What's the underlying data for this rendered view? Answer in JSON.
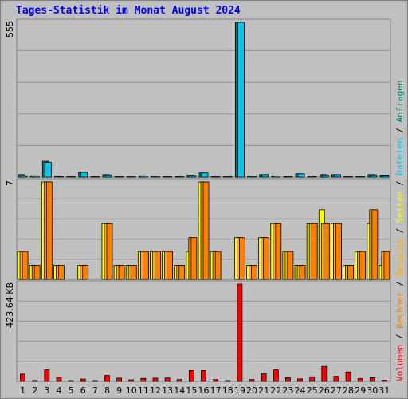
{
  "title": "Tages-Statistik im Monat August 2024",
  "chart_data": {
    "type": "bar",
    "title": "Tages-Statistik im Monat August 2024",
    "days": [
      "1",
      "2",
      "3",
      "4",
      "5",
      "6",
      "7",
      "8",
      "9",
      "10",
      "11",
      "12",
      "13",
      "14",
      "15",
      "16",
      "17",
      "18",
      "19",
      "20",
      "21",
      "22",
      "23",
      "24",
      "25",
      "26",
      "27",
      "28",
      "29",
      "30",
      "31"
    ],
    "weekend_days": [
      "3",
      "4",
      "10",
      "11",
      "17",
      "18",
      "24",
      "25",
      "31"
    ],
    "panels": [
      {
        "name": "requests-files",
        "ymax_label": "555",
        "ymax": 555,
        "series": [
          {
            "name": "Anfragen",
            "color": "#00806b",
            "values": [
              9,
              5,
              57,
              4,
              2,
              17,
              2,
              9,
              2,
              4,
              5,
              4,
              2,
              2,
              7,
              15,
              2,
              2,
              555,
              4,
              9,
              4,
              2,
              12,
              4,
              9,
              9,
              2,
              2,
              9,
              7
            ]
          },
          {
            "name": "Dateien",
            "color": "#00c8f0",
            "values": [
              5,
              4,
              53,
              2,
              1,
              17,
              1,
              8,
              1,
              3,
              4,
              3,
              1,
              1,
              6,
              15,
              1,
              1,
              555,
              3,
              9,
              4,
              1,
              12,
              3,
              8,
              9,
              1,
              1,
              8,
              7
            ]
          }
        ]
      },
      {
        "name": "pages-visits-hosts",
        "ymax_label": "7",
        "ymax": 7,
        "series": [
          {
            "name": "Seiten",
            "color": "#ffff00",
            "values": [
              2,
              1,
              7,
              1,
              0,
              1,
              0,
              4,
              1,
              1,
              2,
              2,
              2,
              1,
              2,
              7,
              2,
              0,
              3,
              1,
              3,
              4,
              2,
              1,
              4,
              5,
              4,
              1,
              2,
              4,
              1
            ]
          },
          {
            "name": "Besuche",
            "color": "#ffb000",
            "values": [
              2,
              1,
              7,
              1,
              0,
              1,
              0,
              4,
              1,
              1,
              2,
              2,
              2,
              1,
              3,
              7,
              2,
              0,
              3,
              1,
              3,
              4,
              2,
              1,
              4,
              4,
              4,
              1,
              2,
              5,
              2
            ]
          },
          {
            "name": "Rechner",
            "color": "#ff8000",
            "values": [
              2,
              1,
              7,
              1,
              0,
              1,
              0,
              4,
              1,
              1,
              2,
              2,
              2,
              1,
              3,
              7,
              2,
              0,
              3,
              1,
              3,
              4,
              2,
              1,
              4,
              4,
              4,
              1,
              2,
              5,
              2
            ]
          }
        ]
      },
      {
        "name": "volume",
        "ymax_label": "423.64 KB",
        "ymax": 423.64,
        "series": [
          {
            "name": "Volumen",
            "color": "#ff0000",
            "values": [
              32,
              4,
              50,
              18,
              2,
              10,
              2,
              26,
              14,
              7,
              13,
              14,
              15,
              8,
              47,
              47,
              8,
              2,
              423.64,
              8,
              33,
              50,
              16,
              11,
              20,
              65,
              22,
              41,
              12,
              16,
              5
            ]
          }
        ]
      }
    ]
  }
}
